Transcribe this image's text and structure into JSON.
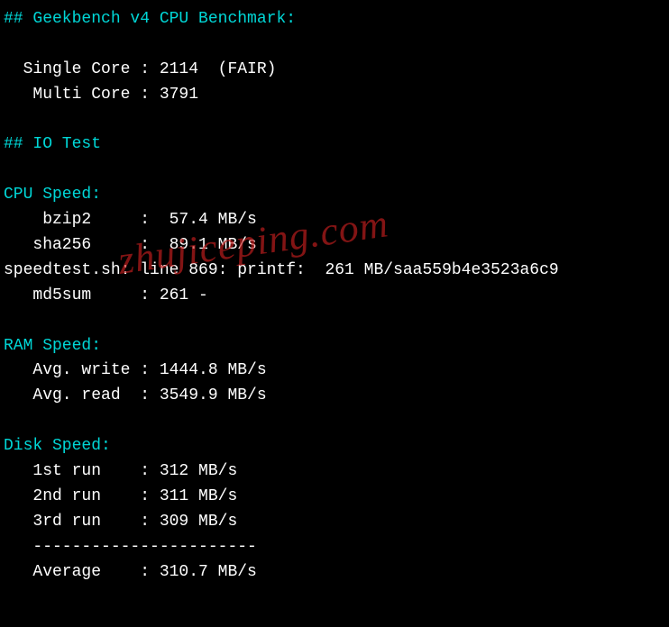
{
  "sections": {
    "geekbench": {
      "header": "## Geekbench v4 CPU Benchmark:",
      "single_core_label": "  Single Core :",
      "single_core_value": " 2114  (FAIR)",
      "multi_core_label": "   Multi Core :",
      "multi_core_value": " 3791"
    },
    "io": {
      "header": "## IO Test",
      "cpu_speed_label": "CPU Speed:",
      "bzip2_label": "    bzip2     :",
      "bzip2_value": "  57.4 MB/s",
      "sha256_label": "   sha256     :",
      "sha256_value": "  89.1 MB/s",
      "speedtest_line": "speedtest.sh: line 869: printf:  261 MB/saa559b4e3523a6c9",
      "md5sum_label": "   md5sum     :",
      "md5sum_value": " 261 -",
      "ram_speed_label": "RAM Speed:",
      "ram_write_label": "   Avg. write :",
      "ram_write_value": " 1444.8 MB/s",
      "ram_read_label": "   Avg. read  :",
      "ram_read_value": " 3549.9 MB/s",
      "disk_speed_label": "Disk Speed:",
      "run1_label": "   1st run    :",
      "run1_value": " 312 MB/s",
      "run2_label": "   2nd run    :",
      "run2_value": " 311 MB/s",
      "run3_label": "   3rd run    :",
      "run3_value": " 309 MB/s",
      "separator": "   -----------------------",
      "average_label": "   Average    :",
      "average_value": " 310.7 MB/s"
    }
  },
  "watermark": "zhujiceping.com",
  "colors": {
    "background": "#000000",
    "cyan": "#00d7d7",
    "white": "#ffffff",
    "watermark": "rgba(200,30,30,0.65)"
  }
}
